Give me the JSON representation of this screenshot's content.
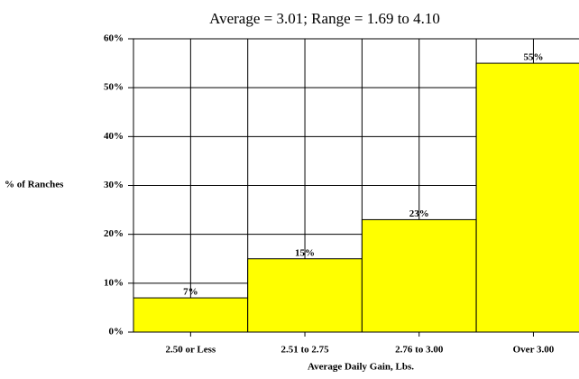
{
  "chart_data": {
    "type": "bar",
    "title": "Average = 3.01; Range = 1.69  to 4.10",
    "x_label": "Average Daily Gain, Lbs.",
    "y_label": "% of Ranches",
    "categories": [
      "2.50 or Less",
      "2.51 to 2.75",
      "2.76 to 3.00",
      "Over 3.00"
    ],
    "values": [
      7,
      15,
      23,
      55
    ],
    "value_labels": [
      "7%",
      "15%",
      "23%",
      "55%"
    ],
    "color": "#ffff00",
    "ylim": [
      0,
      60
    ],
    "yticks": [
      {
        "value": 0,
        "label": "0%"
      },
      {
        "value": 10,
        "label": "10%"
      },
      {
        "value": 20,
        "label": "20%"
      },
      {
        "value": 30,
        "label": "30%"
      },
      {
        "value": 40,
        "label": "40%"
      },
      {
        "value": 50,
        "label": "50%"
      },
      {
        "value": 60,
        "label": "60%"
      }
    ],
    "grid": true
  }
}
